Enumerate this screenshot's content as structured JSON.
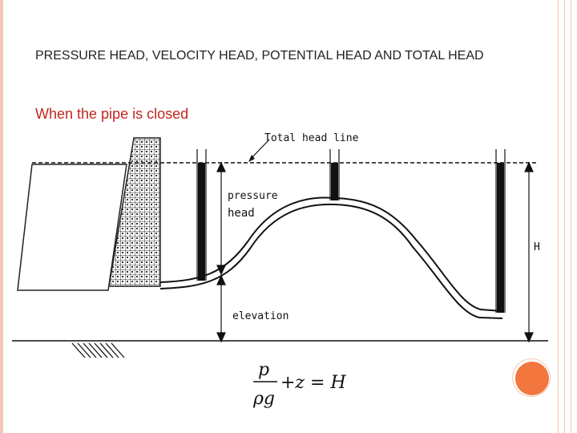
{
  "slide": {
    "title": "PRESSURE HEAD, VELOCITY HEAD, POTENTIAL HEAD AND TOTAL HEAD",
    "subtitle": "When the pipe is closed"
  },
  "diagram": {
    "labels": {
      "total_head_line": "Total head line",
      "pressure": "pressure",
      "head": "head",
      "elevation": "elevation",
      "H": "H"
    }
  },
  "formula": {
    "numerator": "p",
    "denominator": "ρg",
    "rest": "+z = H"
  },
  "colors": {
    "title": "#222222",
    "subtitle": "#c0261e",
    "accent": "#f2763e",
    "border": "#f3c7b0"
  }
}
